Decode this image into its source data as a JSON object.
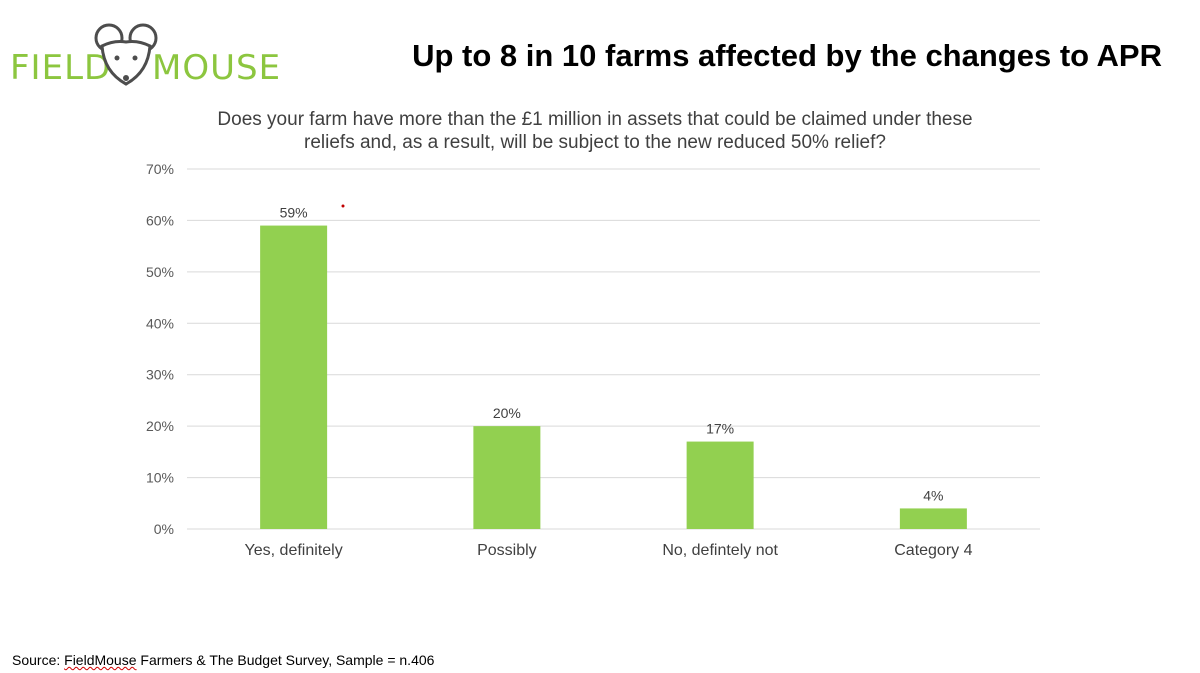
{
  "logo": {
    "left_text": "FIELD",
    "right_text": "MOUSE",
    "brand_color": "#8cc63f",
    "icon": "mouse-head-icon"
  },
  "header": {
    "title": "Up to 8 in 10 farms affected by the changes to APR"
  },
  "chart_data": {
    "type": "bar",
    "title": "Does your farm have more than the £1 million in assets that could be claimed under these reliefs and, as a result, will be subject to the new reduced 50% relief?",
    "categories": [
      "Yes, definitely",
      "Possibly",
      "No, defintely not",
      "Category 4"
    ],
    "values": [
      59,
      20,
      17,
      4
    ],
    "data_labels": [
      "59%",
      "20%",
      "17%",
      "4%"
    ],
    "ylim": [
      0,
      70
    ],
    "yticks": [
      0,
      10,
      20,
      30,
      40,
      50,
      60,
      70
    ],
    "ytick_labels": [
      "0%",
      "10%",
      "20%",
      "30%",
      "40%",
      "50%",
      "60%",
      "70%"
    ],
    "grid": true,
    "bar_color": "#92d050",
    "xlabel": "",
    "ylabel": ""
  },
  "footer": {
    "source_prefix": "Source: ",
    "source_brand": "FieldMouse",
    "source_rest": " Farmers & The Budget Survey, Sample = n.406"
  }
}
